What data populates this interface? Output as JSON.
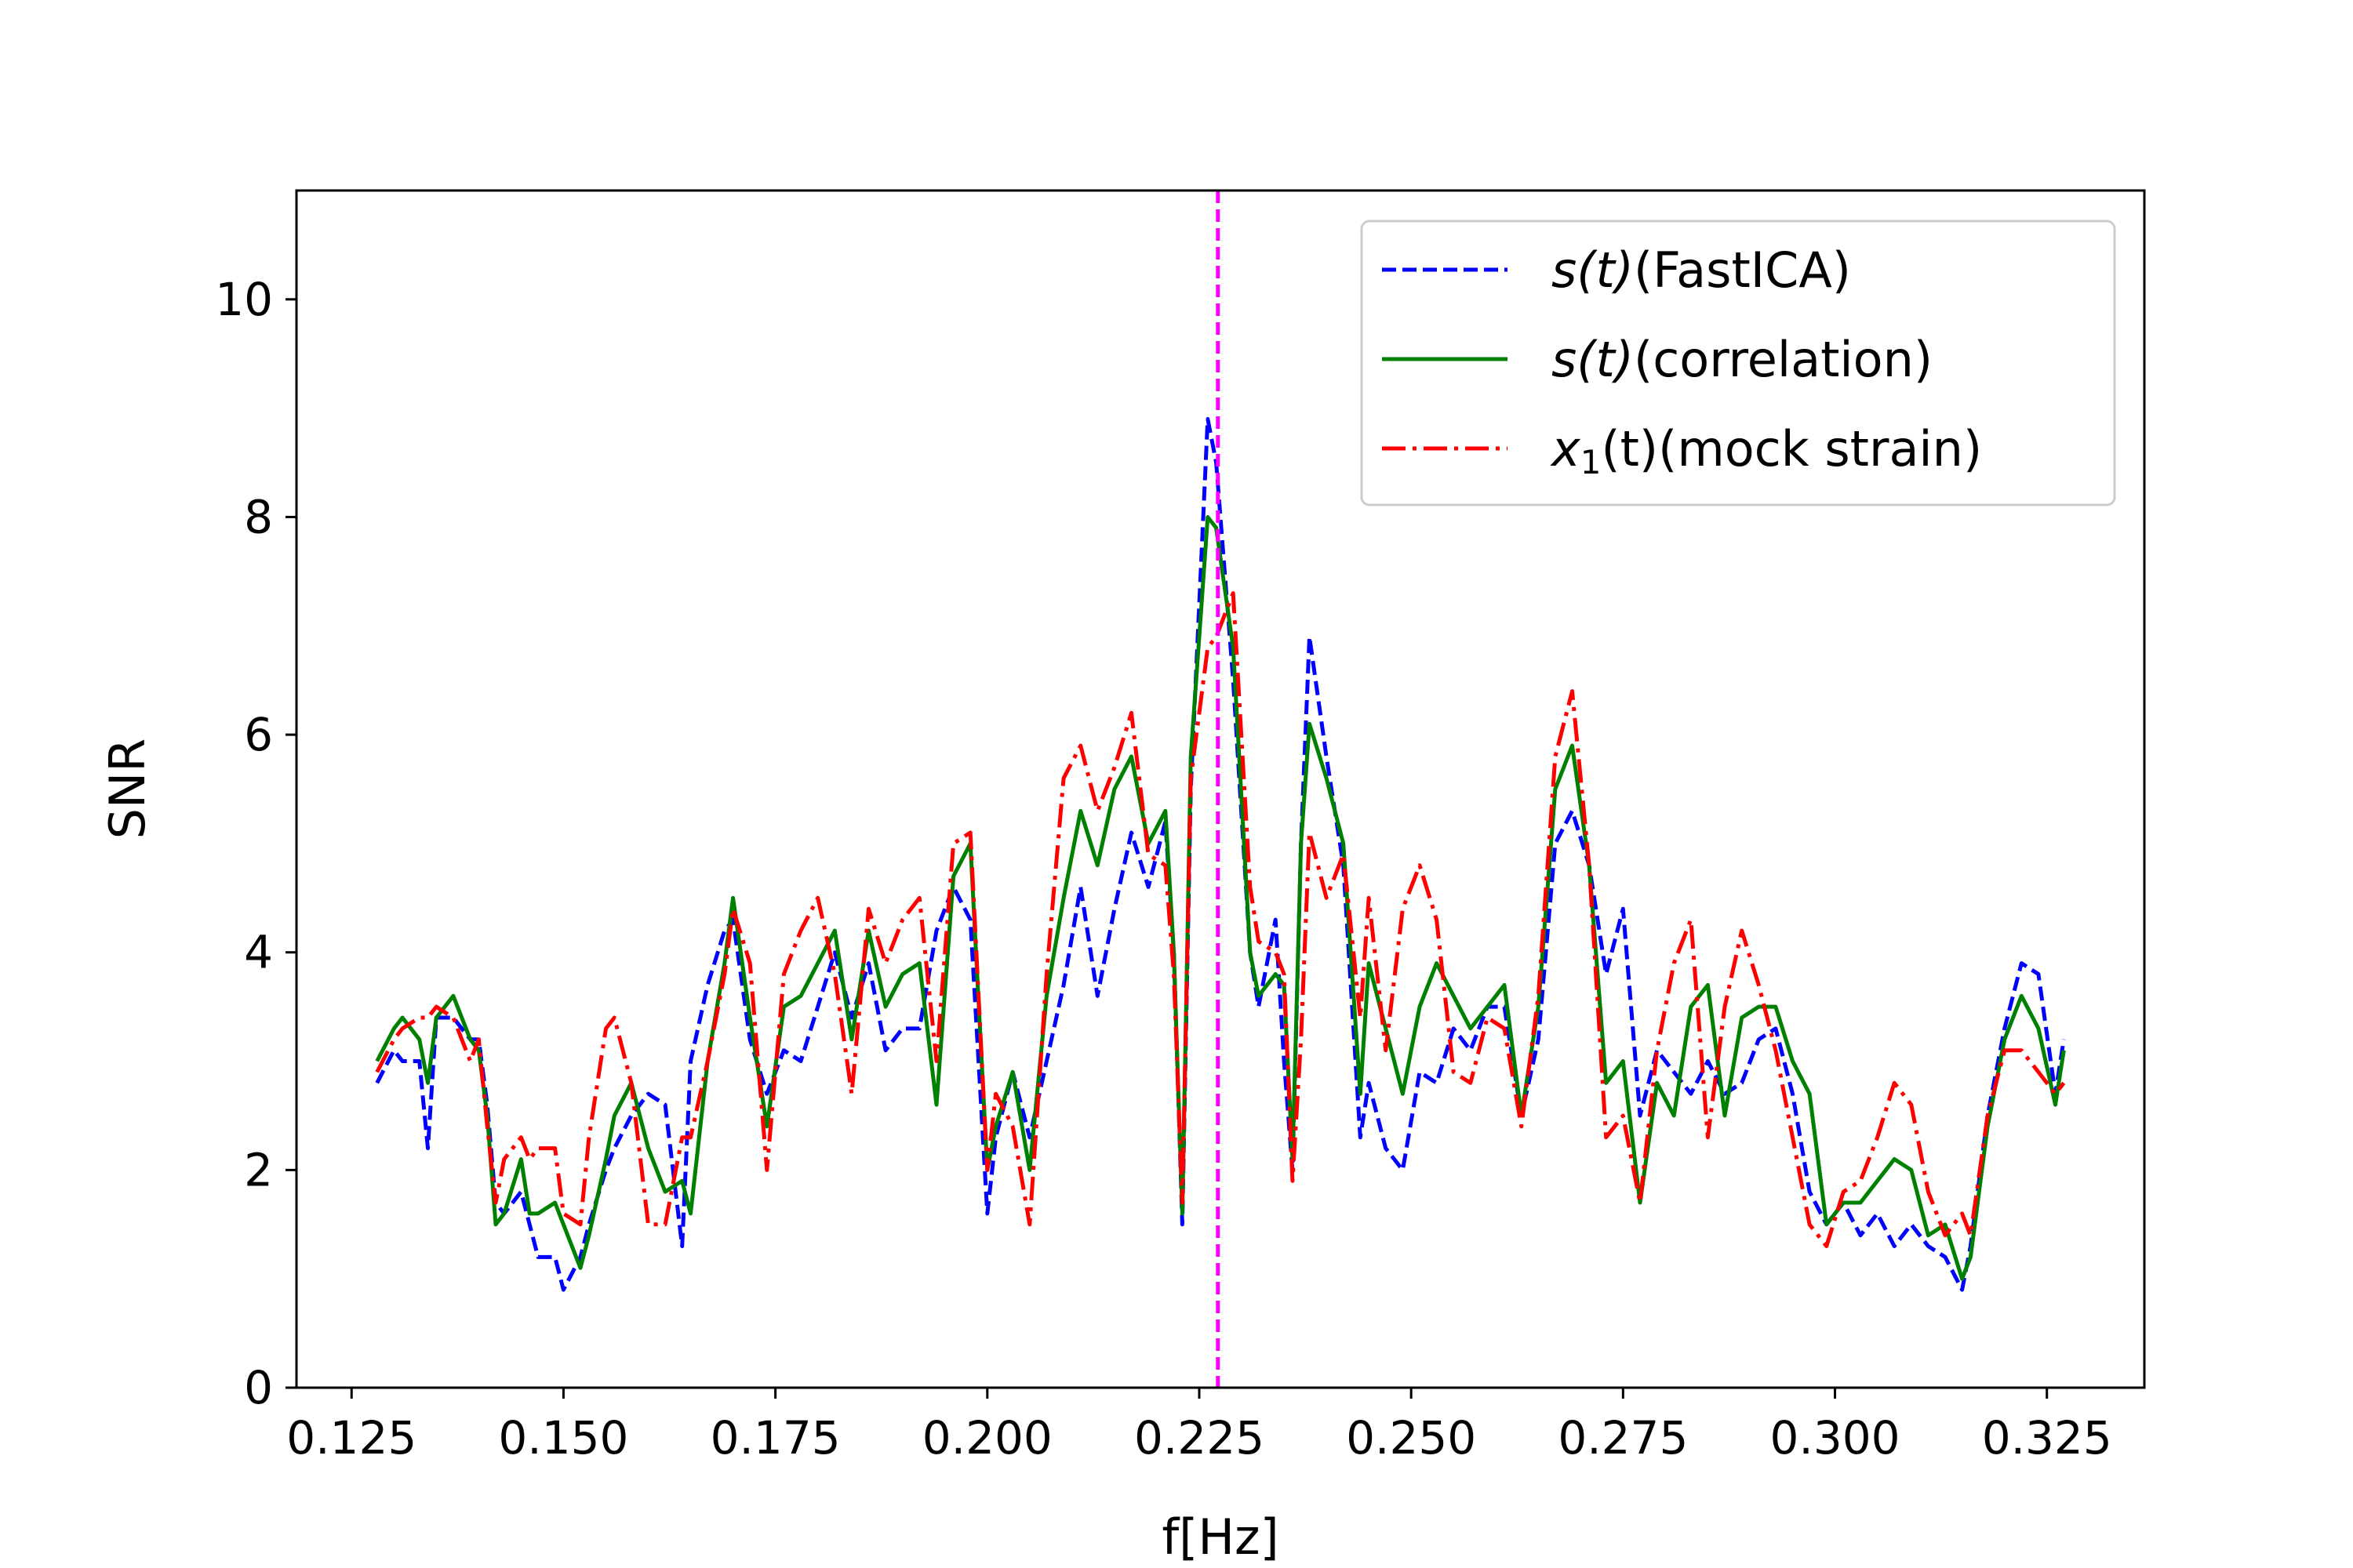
{
  "chart_data": {
    "type": "line",
    "xlabel": "f[Hz]",
    "ylabel": "SNR",
    "xlim": [
      0.1185,
      0.3365
    ],
    "ylim": [
      0,
      11
    ],
    "xticks": [
      "0.125",
      "0.150",
      "0.175",
      "0.200",
      "0.225",
      "0.250",
      "0.275",
      "0.300",
      "0.325"
    ],
    "yticks": [
      "0",
      "2",
      "4",
      "6",
      "8",
      "10"
    ],
    "grid": false,
    "legend_position": "top-right",
    "vline": {
      "x": 0.2272,
      "color": "#ff00ff",
      "style": "dashed"
    },
    "series": [
      {
        "name_main": "s(t)",
        "name_suffix": "(FastICA)",
        "color": "#0000ff",
        "style": "dashed",
        "x": [
          0.128,
          0.13,
          0.131,
          0.133,
          0.134,
          0.135,
          0.137,
          0.139,
          0.14,
          0.141,
          0.142,
          0.143,
          0.145,
          0.146,
          0.147,
          0.149,
          0.15,
          0.152,
          0.153,
          0.155,
          0.156,
          0.158,
          0.16,
          0.162,
          0.164,
          0.165,
          0.167,
          0.169,
          0.17,
          0.172,
          0.174,
          0.176,
          0.178,
          0.18,
          0.182,
          0.184,
          0.186,
          0.188,
          0.19,
          0.192,
          0.194,
          0.196,
          0.198,
          0.2,
          0.201,
          0.203,
          0.205,
          0.207,
          0.209,
          0.211,
          0.213,
          0.215,
          0.217,
          0.219,
          0.221,
          0.222,
          0.223,
          0.224,
          0.226,
          0.227,
          0.229,
          0.231,
          0.232,
          0.234,
          0.235,
          0.236,
          0.237,
          0.238,
          0.24,
          0.242,
          0.244,
          0.245,
          0.247,
          0.249,
          0.251,
          0.253,
          0.255,
          0.257,
          0.259,
          0.261,
          0.263,
          0.265,
          0.267,
          0.269,
          0.271,
          0.273,
          0.275,
          0.277,
          0.279,
          0.281,
          0.283,
          0.285,
          0.287,
          0.289,
          0.291,
          0.293,
          0.295,
          0.297,
          0.299,
          0.301,
          0.303,
          0.305,
          0.307,
          0.309,
          0.311,
          0.313,
          0.315,
          0.316,
          0.318,
          0.32,
          0.322,
          0.324,
          0.326,
          0.327
        ],
        "y": [
          2.8,
          3.1,
          3.0,
          3.0,
          2.2,
          3.4,
          3.4,
          3.2,
          3.2,
          2.6,
          1.7,
          1.6,
          1.8,
          1.5,
          1.2,
          1.2,
          0.9,
          1.2,
          1.5,
          2.0,
          2.2,
          2.5,
          2.7,
          2.6,
          1.3,
          3.0,
          3.7,
          4.2,
          4.3,
          3.2,
          2.7,
          3.1,
          3.0,
          3.5,
          4.0,
          3.4,
          3.9,
          3.1,
          3.3,
          3.3,
          4.2,
          4.6,
          4.3,
          1.6,
          2.3,
          2.9,
          2.3,
          3.0,
          3.7,
          4.6,
          3.6,
          4.4,
          5.1,
          4.6,
          5.2,
          4.0,
          1.5,
          5.5,
          8.9,
          8.5,
          6.5,
          4.0,
          3.5,
          4.3,
          3.0,
          2.0,
          5.0,
          6.9,
          5.8,
          4.8,
          2.3,
          2.8,
          2.2,
          2.0,
          2.9,
          2.8,
          3.3,
          3.1,
          3.5,
          3.5,
          2.5,
          3.2,
          5.0,
          5.3,
          4.8,
          3.8,
          4.4,
          2.5,
          3.1,
          2.9,
          2.7,
          3.0,
          2.7,
          2.8,
          3.2,
          3.3,
          2.7,
          1.8,
          1.5,
          1.7,
          1.4,
          1.6,
          1.3,
          1.5,
          1.3,
          1.2,
          0.9,
          1.3,
          2.5,
          3.3,
          3.9,
          3.8,
          2.7,
          3.2
        ]
      },
      {
        "name_main": "s(t)",
        "name_suffix": "(correlation)",
        "color": "#008000",
        "style": "solid",
        "x": [
          0.128,
          0.13,
          0.131,
          0.133,
          0.134,
          0.135,
          0.137,
          0.139,
          0.14,
          0.141,
          0.142,
          0.143,
          0.145,
          0.146,
          0.147,
          0.149,
          0.15,
          0.152,
          0.153,
          0.155,
          0.156,
          0.158,
          0.16,
          0.162,
          0.164,
          0.165,
          0.167,
          0.169,
          0.17,
          0.172,
          0.174,
          0.176,
          0.178,
          0.18,
          0.182,
          0.184,
          0.186,
          0.188,
          0.19,
          0.192,
          0.194,
          0.196,
          0.198,
          0.2,
          0.201,
          0.203,
          0.205,
          0.207,
          0.209,
          0.211,
          0.213,
          0.215,
          0.217,
          0.219,
          0.221,
          0.222,
          0.223,
          0.224,
          0.226,
          0.227,
          0.229,
          0.231,
          0.232,
          0.234,
          0.235,
          0.236,
          0.237,
          0.238,
          0.24,
          0.242,
          0.244,
          0.245,
          0.247,
          0.249,
          0.251,
          0.253,
          0.255,
          0.257,
          0.259,
          0.261,
          0.263,
          0.265,
          0.267,
          0.269,
          0.271,
          0.273,
          0.275,
          0.277,
          0.279,
          0.281,
          0.283,
          0.285,
          0.287,
          0.289,
          0.291,
          0.293,
          0.295,
          0.297,
          0.299,
          0.301,
          0.303,
          0.305,
          0.307,
          0.309,
          0.311,
          0.313,
          0.315,
          0.316,
          0.318,
          0.32,
          0.322,
          0.324,
          0.326,
          0.327
        ],
        "y": [
          3.0,
          3.3,
          3.4,
          3.2,
          2.8,
          3.4,
          3.6,
          3.2,
          3.1,
          2.5,
          1.5,
          1.6,
          2.1,
          1.6,
          1.6,
          1.7,
          1.5,
          1.1,
          1.4,
          2.1,
          2.5,
          2.8,
          2.2,
          1.8,
          1.9,
          1.6,
          3.0,
          3.9,
          4.5,
          3.4,
          2.4,
          3.5,
          3.6,
          3.9,
          4.2,
          3.2,
          4.2,
          3.5,
          3.8,
          3.9,
          2.6,
          4.7,
          5.0,
          2.0,
          2.4,
          2.9,
          2.0,
          3.6,
          4.5,
          5.3,
          4.8,
          5.5,
          5.8,
          5.0,
          5.3,
          4.0,
          1.6,
          5.8,
          8.0,
          7.9,
          6.8,
          4.0,
          3.6,
          3.8,
          3.7,
          2.1,
          5.0,
          6.1,
          5.6,
          5.0,
          2.7,
          3.9,
          3.3,
          2.7,
          3.5,
          3.9,
          3.6,
          3.3,
          3.5,
          3.7,
          2.5,
          3.5,
          5.5,
          5.9,
          4.8,
          2.8,
          3.0,
          1.7,
          2.8,
          2.5,
          3.5,
          3.7,
          2.5,
          3.4,
          3.5,
          3.5,
          3.0,
          2.7,
          1.5,
          1.7,
          1.7,
          1.9,
          2.1,
          2.0,
          1.4,
          1.5,
          1.0,
          1.2,
          2.4,
          3.2,
          3.6,
          3.3,
          2.6,
          3.1
        ]
      },
      {
        "name_main": "x",
        "name_sub": "1",
        "name_mid": "(t)",
        "name_suffix": "(mock strain)",
        "color": "#ff0000",
        "style": "dashdot",
        "x": [
          0.128,
          0.13,
          0.131,
          0.133,
          0.134,
          0.135,
          0.137,
          0.139,
          0.14,
          0.141,
          0.142,
          0.143,
          0.145,
          0.146,
          0.147,
          0.149,
          0.15,
          0.152,
          0.153,
          0.155,
          0.156,
          0.158,
          0.16,
          0.162,
          0.164,
          0.165,
          0.167,
          0.169,
          0.17,
          0.172,
          0.174,
          0.176,
          0.178,
          0.18,
          0.182,
          0.184,
          0.186,
          0.188,
          0.19,
          0.192,
          0.194,
          0.196,
          0.198,
          0.2,
          0.201,
          0.203,
          0.205,
          0.207,
          0.209,
          0.211,
          0.213,
          0.215,
          0.217,
          0.219,
          0.221,
          0.222,
          0.223,
          0.224,
          0.226,
          0.227,
          0.229,
          0.231,
          0.232,
          0.234,
          0.235,
          0.236,
          0.237,
          0.238,
          0.24,
          0.242,
          0.244,
          0.245,
          0.247,
          0.249,
          0.251,
          0.253,
          0.255,
          0.257,
          0.259,
          0.261,
          0.263,
          0.265,
          0.267,
          0.269,
          0.271,
          0.273,
          0.275,
          0.277,
          0.279,
          0.281,
          0.283,
          0.285,
          0.287,
          0.289,
          0.291,
          0.293,
          0.295,
          0.297,
          0.299,
          0.301,
          0.303,
          0.305,
          0.307,
          0.309,
          0.311,
          0.313,
          0.315,
          0.316,
          0.318,
          0.32,
          0.322,
          0.324,
          0.326,
          0.327
        ],
        "y": [
          2.9,
          3.2,
          3.3,
          3.4,
          3.4,
          3.5,
          3.4,
          3.0,
          3.2,
          2.4,
          1.7,
          2.1,
          2.3,
          2.1,
          2.2,
          2.2,
          1.6,
          1.5,
          2.3,
          3.3,
          3.4,
          2.8,
          1.5,
          1.5,
          2.3,
          2.3,
          3.0,
          3.8,
          4.4,
          3.9,
          2.0,
          3.8,
          4.2,
          4.5,
          3.8,
          2.7,
          4.4,
          3.9,
          4.3,
          4.5,
          3.0,
          5.0,
          5.1,
          2.0,
          2.7,
          2.4,
          1.5,
          3.8,
          5.6,
          5.9,
          5.3,
          5.7,
          6.2,
          4.9,
          4.8,
          3.8,
          1.7,
          5.6,
          6.8,
          6.9,
          7.3,
          4.6,
          4.1,
          4.0,
          3.8,
          1.9,
          3.2,
          5.1,
          4.5,
          4.9,
          3.4,
          4.5,
          3.1,
          4.4,
          4.8,
          4.3,
          2.9,
          2.8,
          3.4,
          3.3,
          2.4,
          3.6,
          5.8,
          6.4,
          4.8,
          2.3,
          2.5,
          1.7,
          3.1,
          3.9,
          4.3,
          2.3,
          3.5,
          4.2,
          3.7,
          3.1,
          2.3,
          1.5,
          1.3,
          1.8,
          1.9,
          2.3,
          2.8,
          2.6,
          1.8,
          1.4,
          1.6,
          1.4,
          2.5,
          3.1,
          3.1,
          2.9,
          2.7,
          2.8
        ]
      }
    ]
  }
}
